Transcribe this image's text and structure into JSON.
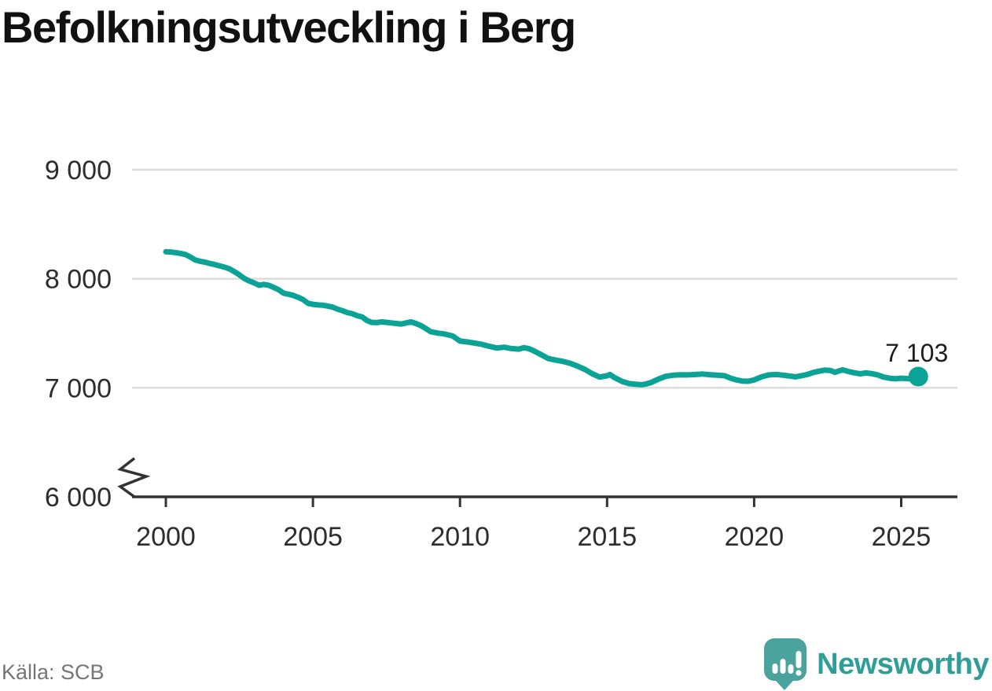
{
  "chart_data": {
    "type": "line",
    "title": "Befolkningsutveckling i Berg",
    "source": "Källa: SCB",
    "x_axis": {
      "ticks": [
        2000,
        2005,
        2010,
        2015,
        2020,
        2025
      ]
    },
    "y_axis": {
      "ticks": [
        {
          "value": 6000,
          "label": "6 000"
        },
        {
          "value": 7000,
          "label": "7 000"
        },
        {
          "value": 8000,
          "label": "8 000"
        },
        {
          "value": 9000,
          "label": "9 000"
        }
      ],
      "axis_break": true,
      "grid": "horizontal"
    },
    "series": [
      {
        "name": "Befolkning i Berg",
        "color": "#0aa396",
        "points": [
          [
            2000.0,
            8248
          ],
          [
            2000.17,
            8245
          ],
          [
            2000.33,
            8240
          ],
          [
            2000.5,
            8232
          ],
          [
            2000.67,
            8222
          ],
          [
            2000.83,
            8200
          ],
          [
            2001.0,
            8172
          ],
          [
            2001.17,
            8160
          ],
          [
            2001.33,
            8152
          ],
          [
            2001.5,
            8140
          ],
          [
            2001.67,
            8130
          ],
          [
            2001.83,
            8118
          ],
          [
            2002.0,
            8106
          ],
          [
            2002.17,
            8090
          ],
          [
            2002.33,
            8065
          ],
          [
            2002.5,
            8035
          ],
          [
            2002.67,
            8002
          ],
          [
            2002.83,
            7980
          ],
          [
            2003.0,
            7962
          ],
          [
            2003.17,
            7940
          ],
          [
            2003.33,
            7948
          ],
          [
            2003.5,
            7940
          ],
          [
            2003.67,
            7920
          ],
          [
            2003.83,
            7900
          ],
          [
            2004.0,
            7868
          ],
          [
            2004.17,
            7858
          ],
          [
            2004.33,
            7848
          ],
          [
            2004.5,
            7830
          ],
          [
            2004.67,
            7808
          ],
          [
            2004.83,
            7775
          ],
          [
            2005.0,
            7766
          ],
          [
            2005.17,
            7760
          ],
          [
            2005.33,
            7758
          ],
          [
            2005.5,
            7750
          ],
          [
            2005.67,
            7740
          ],
          [
            2005.83,
            7722
          ],
          [
            2006.0,
            7707
          ],
          [
            2006.17,
            7690
          ],
          [
            2006.33,
            7680
          ],
          [
            2006.5,
            7662
          ],
          [
            2006.67,
            7650
          ],
          [
            2006.83,
            7618
          ],
          [
            2007.0,
            7600
          ],
          [
            2007.17,
            7598
          ],
          [
            2007.33,
            7605
          ],
          [
            2007.5,
            7600
          ],
          [
            2007.67,
            7595
          ],
          [
            2007.83,
            7590
          ],
          [
            2008.0,
            7585
          ],
          [
            2008.17,
            7595
          ],
          [
            2008.33,
            7605
          ],
          [
            2008.5,
            7590
          ],
          [
            2008.67,
            7570
          ],
          [
            2008.83,
            7545
          ],
          [
            2009.0,
            7515
          ],
          [
            2009.25,
            7502
          ],
          [
            2009.5,
            7492
          ],
          [
            2009.75,
            7475
          ],
          [
            2010.0,
            7428
          ],
          [
            2010.25,
            7420
          ],
          [
            2010.5,
            7410
          ],
          [
            2010.75,
            7398
          ],
          [
            2011.0,
            7380
          ],
          [
            2011.25,
            7365
          ],
          [
            2011.5,
            7372
          ],
          [
            2011.75,
            7360
          ],
          [
            2012.0,
            7355
          ],
          [
            2012.17,
            7368
          ],
          [
            2012.33,
            7360
          ],
          [
            2012.5,
            7340
          ],
          [
            2012.75,
            7305
          ],
          [
            2013.0,
            7268
          ],
          [
            2013.25,
            7254
          ],
          [
            2013.5,
            7242
          ],
          [
            2013.75,
            7224
          ],
          [
            2014.0,
            7198
          ],
          [
            2014.25,
            7168
          ],
          [
            2014.5,
            7128
          ],
          [
            2014.75,
            7098
          ],
          [
            2015.0,
            7110
          ],
          [
            2015.1,
            7122
          ],
          [
            2015.25,
            7094
          ],
          [
            2015.5,
            7060
          ],
          [
            2015.75,
            7038
          ],
          [
            2016.0,
            7032
          ],
          [
            2016.17,
            7028
          ],
          [
            2016.33,
            7035
          ],
          [
            2016.5,
            7048
          ],
          [
            2016.75,
            7080
          ],
          [
            2017.0,
            7105
          ],
          [
            2017.25,
            7115
          ],
          [
            2017.5,
            7120
          ],
          [
            2017.75,
            7118
          ],
          [
            2018.0,
            7122
          ],
          [
            2018.25,
            7126
          ],
          [
            2018.5,
            7120
          ],
          [
            2018.75,
            7115
          ],
          [
            2019.0,
            7110
          ],
          [
            2019.2,
            7088
          ],
          [
            2019.4,
            7072
          ],
          [
            2019.6,
            7062
          ],
          [
            2019.8,
            7060
          ],
          [
            2020.0,
            7072
          ],
          [
            2020.25,
            7100
          ],
          [
            2020.5,
            7118
          ],
          [
            2020.75,
            7122
          ],
          [
            2021.0,
            7115
          ],
          [
            2021.2,
            7108
          ],
          [
            2021.4,
            7100
          ],
          [
            2021.6,
            7110
          ],
          [
            2021.8,
            7122
          ],
          [
            2022.0,
            7140
          ],
          [
            2022.2,
            7152
          ],
          [
            2022.4,
            7162
          ],
          [
            2022.6,
            7158
          ],
          [
            2022.75,
            7142
          ],
          [
            2023.0,
            7165
          ],
          [
            2023.2,
            7150
          ],
          [
            2023.4,
            7138
          ],
          [
            2023.6,
            7128
          ],
          [
            2023.8,
            7136
          ],
          [
            2024.0,
            7130
          ],
          [
            2024.2,
            7118
          ],
          [
            2024.4,
            7098
          ],
          [
            2024.6,
            7088
          ],
          [
            2024.8,
            7082
          ],
          [
            2025.0,
            7088
          ],
          [
            2025.2,
            7084
          ],
          [
            2025.4,
            7080
          ],
          [
            2025.58,
            7103
          ]
        ]
      }
    ],
    "end_annotation": {
      "label": "7 103",
      "value": 7103
    }
  },
  "branding": {
    "logo_text": "Newsworthy",
    "logo_color": "#2f9e97",
    "icon_color": "#4aa39c"
  },
  "colors": {
    "grid": "#dcdcdc",
    "axis": "#333333",
    "tick_text": "#2d2d2d"
  }
}
